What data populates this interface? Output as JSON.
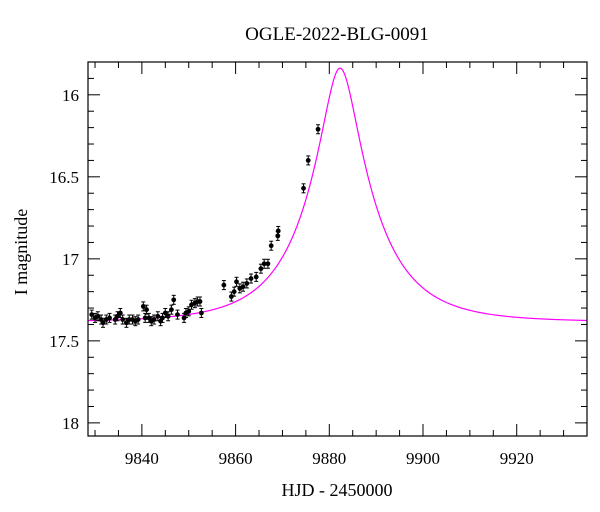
{
  "chart_data": {
    "type": "scatter",
    "title": "OGLE-2022-BLG-0091",
    "xlabel": "HJD - 2450000",
    "ylabel": "I magnitude",
    "xlim": [
      9828.5,
      9935
    ],
    "ylim": [
      18.08,
      15.8
    ],
    "y_inverted": true,
    "x_ticks": [
      9840,
      9860,
      9880,
      9900,
      9920
    ],
    "y_ticks": [
      16,
      16.5,
      17,
      17.5,
      18
    ],
    "x_minor_step": 5,
    "y_minor_step": 0.1,
    "grid": false,
    "colors": {
      "data": "#000000",
      "model": "#ff00ff",
      "axes": "#000000"
    },
    "series": [
      {
        "kind": "data_points_with_errorbars",
        "points": [
          [
            9829.3,
            17.34
          ],
          [
            9830.0,
            17.36
          ],
          [
            9830.6,
            17.35
          ],
          [
            9831.3,
            17.37
          ],
          [
            9831.7,
            17.39
          ],
          [
            9832.4,
            17.37
          ],
          [
            9833.1,
            17.36
          ],
          [
            9834.3,
            17.37
          ],
          [
            9834.8,
            17.35
          ],
          [
            9835.4,
            17.33
          ],
          [
            9835.9,
            17.37
          ],
          [
            9836.7,
            17.39
          ],
          [
            9837.3,
            17.37
          ],
          [
            9838.0,
            17.37
          ],
          [
            9838.6,
            17.38
          ],
          [
            9839.2,
            17.37
          ],
          [
            9840.3,
            17.29
          ],
          [
            9840.7,
            17.36
          ],
          [
            9841.0,
            17.31
          ],
          [
            9841.5,
            17.36
          ],
          [
            9842.0,
            17.38
          ],
          [
            9842.6,
            17.37
          ],
          [
            9843.4,
            17.35
          ],
          [
            9844.0,
            17.38
          ],
          [
            9844.4,
            17.36
          ],
          [
            9845.0,
            17.33
          ],
          [
            9845.6,
            17.35
          ],
          [
            9846.3,
            17.31
          ],
          [
            9846.8,
            17.25
          ],
          [
            9847.6,
            17.34
          ],
          [
            9849.0,
            17.36
          ],
          [
            9849.4,
            17.33
          ],
          [
            9850.0,
            17.32
          ],
          [
            9850.6,
            17.28
          ],
          [
            9851.3,
            17.27
          ],
          [
            9851.9,
            17.26
          ],
          [
            9852.4,
            17.26
          ],
          [
            9852.7,
            17.33
          ],
          [
            9857.5,
            17.16
          ],
          [
            9859.1,
            17.23
          ],
          [
            9859.7,
            17.2
          ],
          [
            9860.2,
            17.14
          ],
          [
            9860.9,
            17.18
          ],
          [
            9861.6,
            17.17
          ],
          [
            9862.4,
            17.15
          ],
          [
            9863.3,
            17.12
          ],
          [
            9864.4,
            17.11
          ],
          [
            9865.4,
            17.06
          ],
          [
            9866.1,
            17.03
          ],
          [
            9866.9,
            17.03
          ],
          [
            9867.6,
            16.92
          ],
          [
            9869.0,
            16.86
          ],
          [
            9869.1,
            16.83
          ],
          [
            9874.5,
            16.57
          ],
          [
            9875.5,
            16.4
          ],
          [
            9877.6,
            16.21
          ]
        ]
      },
      {
        "kind": "model_curve",
        "baseline_mag": 17.385,
        "t0": 9882.3,
        "peak_mag": 15.83
      }
    ]
  }
}
